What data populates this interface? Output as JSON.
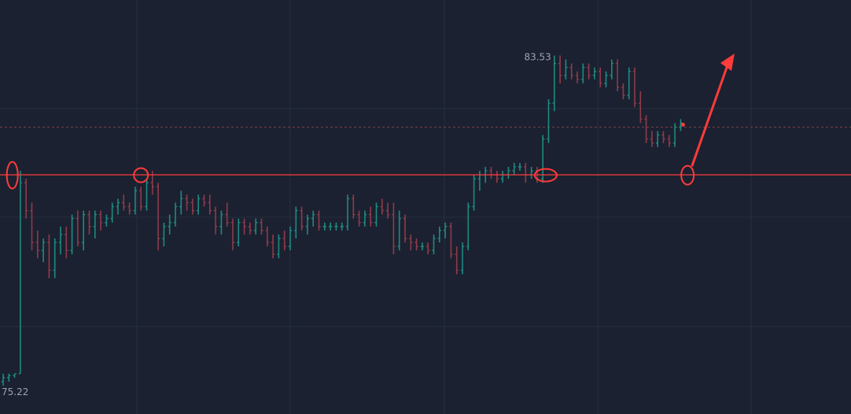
{
  "chart_data": {
    "type": "bar",
    "subtype": "ohlc",
    "ylim": [
      75.0,
      84.5
    ],
    "grid": true,
    "high_label": "83.53",
    "low_label": "75.22",
    "resistance_level": 80.5,
    "dashed_level": 81.7,
    "colors": {
      "background": "#1b2130",
      "grid": "#263040",
      "up": "#1f8a80",
      "down": "#8e3b4b",
      "annotation": "#ff3b3b",
      "dashed_line": "#7a3c4a"
    },
    "series": [
      {
        "values": [
          [
            75.3,
            75.5,
            75.2,
            75.4
          ],
          [
            75.4,
            75.5,
            75.3,
            75.45
          ],
          [
            75.45,
            75.5,
            75.4,
            75.5
          ],
          [
            75.5,
            80.6,
            75.5,
            80.3
          ],
          [
            80.3,
            80.4,
            79.4,
            79.6
          ],
          [
            79.6,
            79.8,
            78.6,
            78.8
          ],
          [
            78.8,
            79.1,
            78.4,
            78.6
          ],
          [
            78.6,
            78.9,
            78.3,
            78.8
          ],
          [
            78.8,
            79.0,
            77.9,
            78.1
          ],
          [
            78.1,
            78.9,
            77.9,
            78.8
          ],
          [
            78.8,
            79.2,
            78.5,
            79.0
          ],
          [
            79.0,
            79.2,
            78.4,
            78.6
          ],
          [
            78.6,
            79.5,
            78.5,
            79.4
          ],
          [
            79.4,
            79.6,
            78.7,
            78.8
          ],
          [
            78.8,
            79.6,
            78.6,
            79.5
          ],
          [
            79.5,
            79.6,
            79.0,
            79.2
          ],
          [
            79.2,
            79.6,
            78.9,
            79.5
          ],
          [
            79.5,
            79.6,
            79.1,
            79.3
          ],
          [
            79.3,
            79.5,
            79.2,
            79.4
          ],
          [
            79.4,
            79.8,
            79.3,
            79.7
          ],
          [
            79.7,
            79.9,
            79.5,
            79.8
          ],
          [
            79.8,
            80.0,
            79.6,
            79.7
          ],
          [
            79.7,
            79.8,
            79.5,
            79.6
          ],
          [
            79.6,
            80.2,
            79.5,
            80.1
          ],
          [
            80.1,
            80.2,
            79.6,
            79.7
          ],
          [
            79.7,
            80.4,
            79.6,
            80.3
          ],
          [
            80.3,
            80.6,
            80.0,
            80.2
          ],
          [
            80.2,
            80.3,
            78.6,
            78.9
          ],
          [
            78.9,
            79.3,
            78.7,
            79.2
          ],
          [
            79.2,
            79.5,
            79.0,
            79.3
          ],
          [
            79.3,
            79.8,
            79.2,
            79.7
          ],
          [
            79.7,
            80.1,
            79.5,
            79.9
          ],
          [
            79.9,
            80.0,
            79.6,
            79.8
          ],
          [
            79.8,
            79.9,
            79.5,
            79.6
          ],
          [
            79.6,
            80.0,
            79.5,
            79.9
          ],
          [
            79.9,
            80.0,
            79.7,
            79.8
          ],
          [
            79.8,
            80.0,
            79.5,
            79.6
          ],
          [
            79.6,
            79.7,
            79.0,
            79.2
          ],
          [
            79.2,
            79.6,
            79.0,
            79.5
          ],
          [
            79.5,
            79.8,
            79.2,
            79.3
          ],
          [
            79.3,
            79.4,
            78.6,
            78.8
          ],
          [
            78.8,
            79.4,
            78.7,
            79.3
          ],
          [
            79.3,
            79.4,
            79.0,
            79.2
          ],
          [
            79.2,
            79.3,
            79.0,
            79.1
          ],
          [
            79.1,
            79.4,
            79.0,
            79.3
          ],
          [
            79.3,
            79.4,
            79.0,
            79.1
          ],
          [
            79.1,
            79.2,
            78.7,
            78.8
          ],
          [
            78.8,
            79.0,
            78.4,
            78.5
          ],
          [
            78.5,
            79.0,
            78.4,
            78.9
          ],
          [
            78.9,
            79.1,
            78.6,
            78.7
          ],
          [
            78.7,
            79.2,
            78.6,
            79.1
          ],
          [
            79.1,
            79.7,
            78.9,
            79.6
          ],
          [
            79.6,
            79.7,
            79.1,
            79.2
          ],
          [
            79.2,
            79.5,
            79.0,
            79.4
          ],
          [
            79.4,
            79.6,
            79.2,
            79.5
          ],
          [
            79.5,
            79.6,
            79.1,
            79.2
          ],
          [
            79.2,
            79.3,
            79.1,
            79.2
          ],
          [
            79.2,
            79.3,
            79.1,
            79.2
          ],
          [
            79.2,
            79.3,
            79.1,
            79.2
          ],
          [
            79.2,
            79.3,
            79.1,
            79.2
          ],
          [
            79.2,
            80.0,
            79.1,
            79.9
          ],
          [
            79.9,
            80.0,
            79.4,
            79.5
          ],
          [
            79.5,
            79.6,
            79.2,
            79.3
          ],
          [
            79.3,
            79.6,
            79.2,
            79.5
          ],
          [
            79.5,
            79.7,
            79.2,
            79.3
          ],
          [
            79.3,
            79.8,
            79.2,
            79.7
          ],
          [
            79.7,
            79.9,
            79.5,
            79.6
          ],
          [
            79.6,
            79.8,
            79.4,
            79.5
          ],
          [
            79.5,
            79.8,
            78.5,
            78.7
          ],
          [
            78.7,
            79.6,
            78.6,
            79.4
          ],
          [
            79.4,
            79.5,
            78.8,
            78.9
          ],
          [
            78.9,
            79.0,
            78.6,
            78.8
          ],
          [
            78.8,
            78.9,
            78.6,
            78.7
          ],
          [
            78.7,
            78.8,
            78.6,
            78.7
          ],
          [
            78.7,
            78.8,
            78.5,
            78.6
          ],
          [
            78.6,
            79.0,
            78.5,
            78.9
          ],
          [
            78.9,
            79.2,
            78.8,
            79.1
          ],
          [
            79.1,
            79.3,
            78.9,
            79.2
          ],
          [
            79.2,
            79.3,
            78.4,
            78.5
          ],
          [
            78.5,
            78.7,
            78.0,
            78.1
          ],
          [
            78.1,
            78.8,
            78.0,
            78.7
          ],
          [
            78.7,
            79.8,
            78.6,
            79.7
          ],
          [
            79.7,
            80.5,
            79.6,
            80.4
          ],
          [
            80.4,
            80.6,
            80.1,
            80.5
          ],
          [
            80.5,
            80.7,
            80.3,
            80.6
          ],
          [
            80.6,
            80.7,
            80.4,
            80.5
          ],
          [
            80.5,
            80.6,
            80.3,
            80.4
          ],
          [
            80.4,
            80.6,
            80.3,
            80.5
          ],
          [
            80.5,
            80.7,
            80.4,
            80.6
          ],
          [
            80.6,
            80.8,
            80.5,
            80.7
          ],
          [
            80.7,
            80.8,
            80.6,
            80.7
          ],
          [
            80.7,
            80.8,
            80.3,
            80.5
          ],
          [
            80.5,
            80.7,
            80.4,
            80.6
          ],
          [
            80.6,
            80.7,
            80.3,
            80.4
          ],
          [
            80.4,
            81.5,
            80.3,
            81.4
          ],
          [
            81.4,
            82.4,
            81.3,
            82.3
          ],
          [
            82.3,
            83.5,
            82.1,
            83.3
          ],
          [
            83.3,
            83.5,
            82.8,
            83.0
          ],
          [
            83.0,
            83.4,
            82.9,
            83.2
          ],
          [
            83.2,
            83.3,
            82.9,
            83.0
          ],
          [
            83.0,
            83.1,
            82.8,
            82.9
          ],
          [
            82.9,
            83.3,
            82.8,
            83.2
          ],
          [
            83.2,
            83.3,
            82.9,
            83.0
          ],
          [
            83.0,
            83.2,
            82.9,
            83.1
          ],
          [
            83.1,
            83.2,
            82.7,
            82.8
          ],
          [
            82.8,
            83.1,
            82.7,
            83.0
          ],
          [
            83.0,
            83.4,
            82.9,
            83.3
          ],
          [
            83.3,
            83.4,
            82.6,
            82.7
          ],
          [
            82.7,
            82.8,
            82.4,
            82.5
          ],
          [
            82.5,
            83.2,
            82.4,
            83.1
          ],
          [
            83.1,
            83.2,
            82.2,
            82.3
          ],
          [
            82.3,
            82.6,
            81.8,
            81.9
          ],
          [
            81.9,
            82.0,
            81.3,
            81.4
          ],
          [
            81.4,
            81.6,
            81.2,
            81.3
          ],
          [
            81.3,
            81.6,
            81.2,
            81.5
          ],
          [
            81.5,
            81.6,
            81.3,
            81.4
          ],
          [
            81.4,
            81.5,
            81.2,
            81.3
          ],
          [
            81.3,
            81.8,
            81.2,
            81.7
          ],
          [
            81.7,
            81.9,
            81.6,
            81.8
          ]
        ]
      }
    ]
  }
}
